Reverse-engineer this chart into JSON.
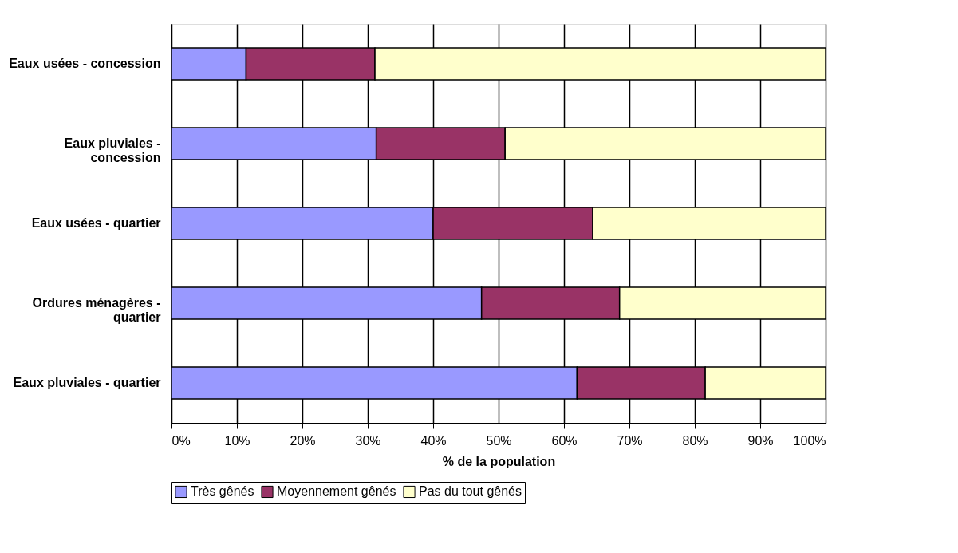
{
  "chart_data": {
    "type": "bar",
    "orientation": "horizontal",
    "stacked": true,
    "categories": [
      "Eaux usées - concession",
      "Eaux pluviales - concession",
      "Eaux usées - quartier",
      "Ordures ménagères - quartier",
      "Eaux pluviales - quartier"
    ],
    "series": [
      {
        "name": "Très gênés",
        "color": "#9999ff",
        "values": [
          11.4,
          31.3,
          40.0,
          47.4,
          62.0
        ]
      },
      {
        "name": "Moyennement gênés",
        "color": "#993366",
        "values": [
          19.7,
          19.7,
          24.4,
          21.1,
          19.6
        ]
      },
      {
        "name": "Pas du tout gênés",
        "color": "#ffffcc",
        "values": [
          68.9,
          49.0,
          35.6,
          31.5,
          18.4
        ]
      }
    ],
    "xlabel": "% de la population",
    "xlim": [
      0,
      100
    ],
    "xticks": [
      {
        "value": 0,
        "label": "0%"
      },
      {
        "value": 10,
        "label": "10%"
      },
      {
        "value": 20,
        "label": "20%"
      },
      {
        "value": 30,
        "label": "30%"
      },
      {
        "value": 40,
        "label": "40%"
      },
      {
        "value": 50,
        "label": "50%"
      },
      {
        "value": 60,
        "label": "60%"
      },
      {
        "value": 70,
        "label": "70%"
      },
      {
        "value": 80,
        "label": "80%"
      },
      {
        "value": 90,
        "label": "90%"
      },
      {
        "value": 100,
        "label": "100%"
      }
    ],
    "grid": "x",
    "legend": "bottom"
  }
}
